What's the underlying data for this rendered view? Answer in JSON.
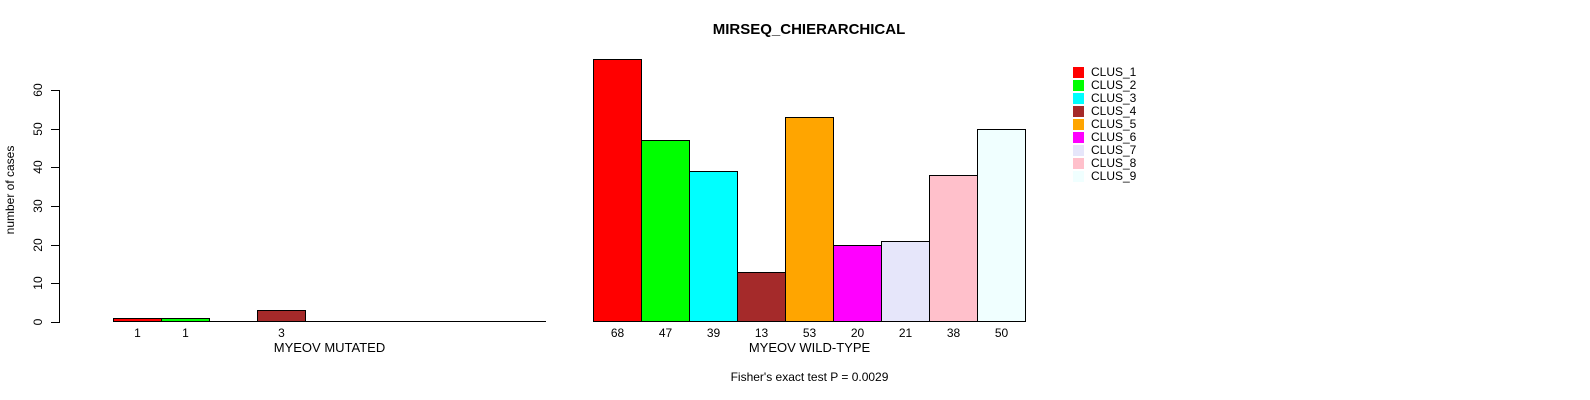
{
  "chart_data": {
    "type": "bar",
    "title": "MIRSEQ_CHIERARCHICAL",
    "ylabel": "number of cases",
    "ylim": [
      0,
      60
    ],
    "y_ticks": [
      0,
      10,
      20,
      30,
      40,
      50,
      60
    ],
    "grid": false,
    "legend_position": "right-top",
    "clusters": [
      "CLUS_1",
      "CLUS_2",
      "CLUS_3",
      "CLUS_4",
      "CLUS_5",
      "CLUS_6",
      "CLUS_7",
      "CLUS_8",
      "CLUS_9"
    ],
    "colors": [
      "#FF0000",
      "#00FF00",
      "#00FFFF",
      "#A52A2A",
      "#FFA500",
      "#FF00FF",
      "#E6E6FA",
      "#FFC0CB",
      "#F0FFFF"
    ],
    "panels": [
      {
        "xlabel": "MYEOV MUTATED",
        "values": [
          1,
          1,
          0,
          3,
          0,
          0,
          0,
          0,
          0
        ],
        "shown_bar_labels": [
          "1",
          "1",
          "3"
        ]
      },
      {
        "xlabel": "MYEOV WILD-TYPE",
        "values": [
          68,
          47,
          39,
          13,
          53,
          20,
          21,
          38,
          50
        ],
        "shown_bar_labels": [
          "68",
          "47",
          "39",
          "13",
          "53",
          "20",
          "21",
          "38",
          "50"
        ]
      }
    ],
    "annotation": "Fisher's exact test P = 0.0029"
  }
}
